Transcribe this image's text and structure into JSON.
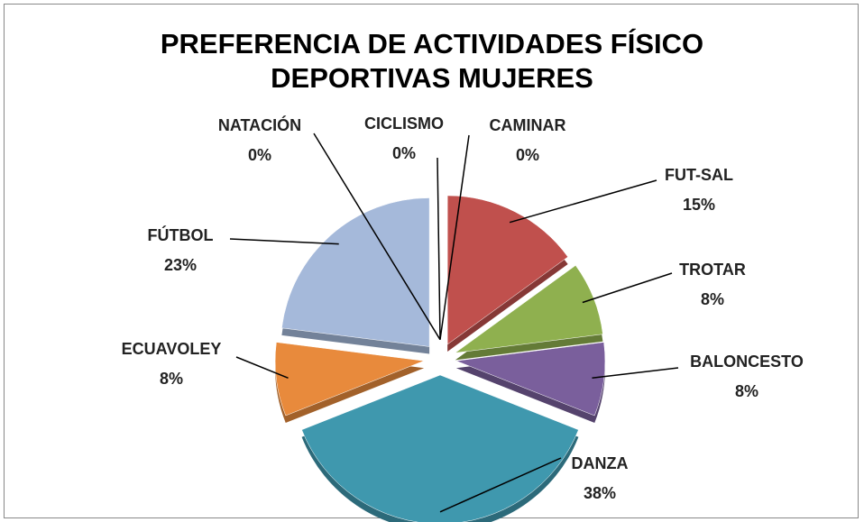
{
  "chart_data": {
    "type": "pie",
    "title": "PREFERENCIA DE ACTIVIDADES FÍSICO DEPORTIVAS MUJERES",
    "categories": [
      "FUT-SAL",
      "TROTAR",
      "BALONCESTO",
      "DANZA",
      "ECUAVOLEY",
      "FÚTBOL",
      "NATACIÓN",
      "CICLISMO",
      "CAMINAR"
    ],
    "values": [
      15,
      8,
      8,
      38,
      8,
      23,
      0,
      0,
      0
    ],
    "value_labels": [
      "15%",
      "8%",
      "8%",
      "38%",
      "8%",
      "23%",
      "0%",
      "0%",
      "0%"
    ],
    "colors": [
      "#c0504d",
      "#8fb04f",
      "#7a5f9c",
      "#3f98ae",
      "#e88a3c",
      "#a5b9da",
      "#4f81bd",
      "#c0504d",
      "#9bbb59"
    ]
  }
}
